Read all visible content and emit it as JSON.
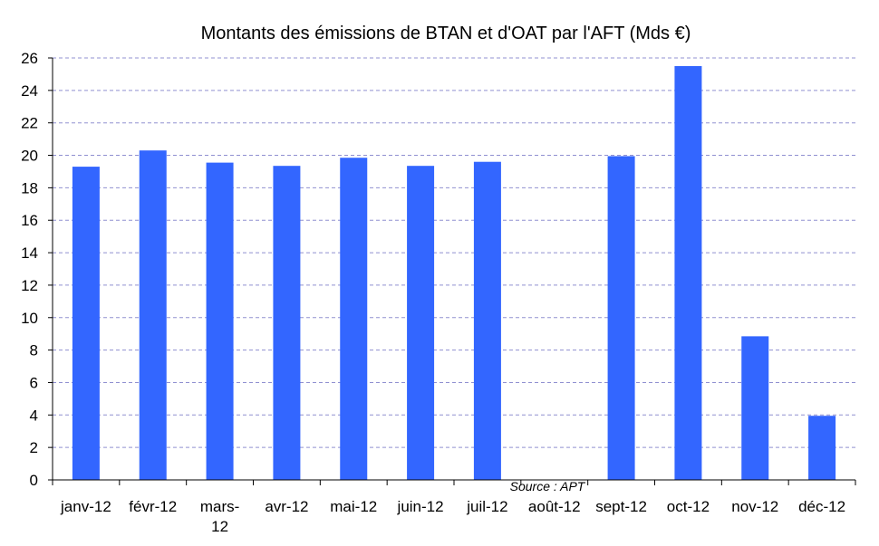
{
  "chart_data": {
    "type": "bar",
    "title": "Montants des émissions de BTAN et d'OAT par l'AFT (Mds €)",
    "xlabel": "",
    "ylabel": "",
    "categories": [
      "janv-12",
      "févr-12",
      "mars-12",
      "avr-12",
      "mai-12",
      "juin-12",
      "juil-12",
      "août-12",
      "sept-12",
      "oct-12",
      "nov-12",
      "déc-12"
    ],
    "category_lines": [
      [
        "janv-12"
      ],
      [
        "févr-12"
      ],
      [
        "mars-",
        "12"
      ],
      [
        "avr-12"
      ],
      [
        "mai-12"
      ],
      [
        "juin-12"
      ],
      [
        "juil-12"
      ],
      [
        "août-12"
      ],
      [
        "sept-12"
      ],
      [
        "oct-12"
      ],
      [
        "nov-12"
      ],
      [
        "déc-12"
      ]
    ],
    "values": [
      19.3,
      20.3,
      19.55,
      19.35,
      19.85,
      19.35,
      19.6,
      0,
      19.95,
      25.5,
      8.85,
      3.95
    ],
    "ylim": [
      0,
      26
    ],
    "yticks": [
      0,
      2,
      4,
      6,
      8,
      10,
      12,
      14,
      16,
      18,
      20,
      22,
      24,
      26
    ],
    "grid": true,
    "legend": "none",
    "annotation": "Source : APT",
    "bar_color": "#3366ff"
  }
}
